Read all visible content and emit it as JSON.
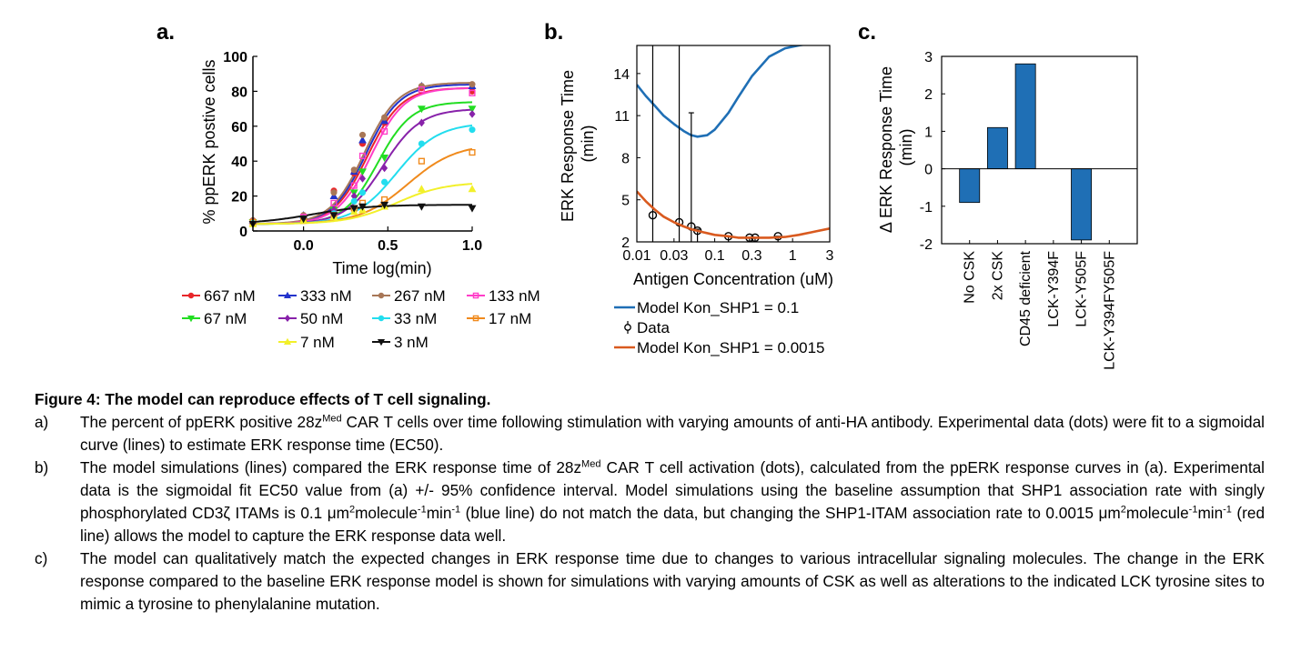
{
  "panels": {
    "a": {
      "label": "a.",
      "chart_data": {
        "type": "scatter",
        "xlabel": "Time log(min)",
        "ylabel": "% ppERK postive cells",
        "xlim": [
          -0.3,
          1.0
        ],
        "ylim": [
          0,
          100
        ],
        "xticks": [
          "0.0",
          "0.5",
          "1.0"
        ],
        "xtick_values": [
          0,
          0.5,
          1.0
        ],
        "yticks": [
          "0",
          "20",
          "40",
          "60",
          "80",
          "100"
        ],
        "ytick_values": [
          0,
          20,
          40,
          60,
          80,
          100
        ],
        "x": [
          -0.3,
          0.0,
          0.18,
          0.3,
          0.35,
          0.48,
          0.7,
          1.0
        ],
        "series": [
          {
            "name": "667 nM",
            "color": "#e8262a",
            "marker": "circle",
            "values": [
              6,
              8,
              23,
              33,
              50,
              62,
              82,
              80
            ],
            "fit": {
              "bottom": 4,
              "top": 82,
              "ec50": 0.38,
              "slope": 10
            }
          },
          {
            "name": "333 nM",
            "color": "#2233cc",
            "marker": "triangle-up",
            "values": [
              6,
              9,
              20,
              34,
              52,
              63,
              83,
              83
            ],
            "fit": {
              "bottom": 4,
              "top": 84,
              "ec50": 0.37,
              "slope": 10
            }
          },
          {
            "name": "267 nM",
            "color": "#a87757",
            "marker": "circle",
            "values": [
              6,
              9,
              22,
              35,
              55,
              65,
              83,
              84
            ],
            "fit": {
              "bottom": 4,
              "top": 85,
              "ec50": 0.36,
              "slope": 10
            }
          },
          {
            "name": "133 nM",
            "color": "#ff3dc8",
            "marker": "square",
            "values": [
              5,
              8,
              16,
              26,
              43,
              57,
              81,
              79
            ],
            "fit": {
              "bottom": 4,
              "top": 82,
              "ec50": 0.4,
              "slope": 10
            }
          },
          {
            "name": "67 nM",
            "color": "#22dd22",
            "marker": "triangle-down",
            "values": [
              5,
              7,
              12,
              22,
              34,
              42,
              70,
              70
            ],
            "fit": {
              "bottom": 4,
              "top": 74,
              "ec50": 0.44,
              "slope": 10
            }
          },
          {
            "name": "50 nM",
            "color": "#8822aa",
            "marker": "diamond",
            "values": [
              5,
              7,
              12,
              20,
              30,
              36,
              62,
              67
            ],
            "fit": {
              "bottom": 4,
              "top": 70,
              "ec50": 0.47,
              "slope": 9
            }
          },
          {
            "name": "33 nM",
            "color": "#22ddee",
            "marker": "circle",
            "values": [
              5,
              7,
              10,
              17,
              22,
              28,
              50,
              58
            ],
            "fit": {
              "bottom": 4,
              "top": 62,
              "ec50": 0.55,
              "slope": 8
            }
          },
          {
            "name": "17 nM",
            "color": "#f08a1c",
            "marker": "square",
            "values": [
              5,
              6,
              9,
              13,
              16,
              18,
              40,
              45
            ],
            "fit": {
              "bottom": 4,
              "top": 50,
              "ec50": 0.62,
              "slope": 7
            }
          },
          {
            "name": "7 nM",
            "color": "#f2f02a",
            "marker": "triangle-up",
            "values": [
              4,
              6,
              8,
              11,
              12,
              14,
              24,
              24
            ],
            "fit": {
              "bottom": 4,
              "top": 28,
              "ec50": 0.55,
              "slope": 7
            }
          },
          {
            "name": "3 nM",
            "color": "#111111",
            "marker": "triangle-down",
            "values": [
              4,
              7,
              9,
              13,
              14,
              15,
              14,
              13
            ],
            "fit": {
              "bottom": 4,
              "top": 15,
              "ec50": 0.05,
              "slope": 6
            }
          }
        ],
        "legend_placement": "bottom"
      }
    },
    "b": {
      "label": "b.",
      "chart_data": {
        "type": "line",
        "xlabel": "Antigen Concentration (uM)",
        "ylabel": "ERK Response Time (min)",
        "xscale": "log",
        "xlim": [
          0.01,
          3
        ],
        "ylim": [
          2,
          16
        ],
        "xticks": [
          "0.01",
          "0.03",
          "0.1",
          "0.3",
          "1",
          "3"
        ],
        "xtick_values": [
          0.01,
          0.03,
          0.1,
          0.3,
          1,
          3
        ],
        "yticks": [
          "2",
          "5",
          "8",
          "11",
          "14"
        ],
        "ytick_values": [
          2,
          5,
          8,
          11,
          14
        ],
        "series": [
          {
            "name": "Model Kon_SHP1 = 0.1",
            "color": "#1f6fb5",
            "x": [
              0.01,
              0.013,
              0.017,
              0.022,
              0.03,
              0.04,
              0.05,
              0.06,
              0.08,
              0.1,
              0.15,
              0.2,
              0.3,
              0.5,
              0.8,
              1.2,
              2,
              3
            ],
            "y": [
              13.2,
              12.4,
              11.7,
              11.0,
              10.4,
              9.9,
              9.6,
              9.5,
              9.6,
              10.0,
              11.2,
              12.3,
              13.8,
              15.2,
              15.8,
              16.0,
              16.2,
              16.3
            ]
          },
          {
            "name": "Data",
            "color": "#000000",
            "errorbars": true,
            "x": [
              0.016,
              0.035,
              0.05,
              0.06,
              0.15,
              0.28,
              0.33,
              0.65
            ],
            "y": [
              3.9,
              3.4,
              3.1,
              2.8,
              2.4,
              2.3,
              2.3,
              2.4
            ],
            "err_low": [
              1.9,
              1.4,
              1.1,
              0.8,
              0.2,
              0.1,
              0.1,
              0.2
            ],
            "err_high": [
              16.3,
              16.3,
              11.2,
              2.9,
              2.4,
              2.3,
              2.3,
              2.4
            ]
          },
          {
            "name": "Model Kon_SHP1 = 0.0015",
            "color": "#d95a1f",
            "x": [
              0.01,
              0.013,
              0.017,
              0.022,
              0.03,
              0.04,
              0.05,
              0.07,
              0.1,
              0.15,
              0.2,
              0.3,
              0.5,
              0.8,
              1.2,
              2,
              3
            ],
            "y": [
              5.6,
              4.9,
              4.3,
              3.8,
              3.4,
              3.1,
              2.9,
              2.7,
              2.5,
              2.4,
              2.3,
              2.3,
              2.3,
              2.35,
              2.5,
              2.75,
              2.95
            ]
          }
        ],
        "legend_placement": "bottom"
      }
    },
    "c": {
      "label": "c.",
      "chart_data": {
        "type": "bar",
        "ylabel": "Δ ERK Response Time (min)",
        "ylim": [
          -2,
          3
        ],
        "yticks": [
          "-2",
          "-1",
          "0",
          "1",
          "2",
          "3"
        ],
        "ytick_values": [
          -2,
          -1,
          0,
          1,
          2,
          3
        ],
        "categories": [
          "No CSK",
          "2x CSK",
          "CD45 deficient",
          "LCK-Y394F",
          "LCK-Y505F",
          "LCK-Y394FY505F"
        ],
        "values": [
          -0.9,
          1.1,
          2.8,
          0,
          -1.9,
          0
        ],
        "color": "#1f6fb5"
      }
    }
  },
  "caption": {
    "title": "Figure 4: The model can reproduce effects of T cell signaling.",
    "items": [
      {
        "tag": "a)",
        "parts": [
          {
            "t": "The percent of ppERK positive 28z"
          },
          {
            "sup": "Med"
          },
          {
            "t": " CAR T cells over time following stimulation with varying amounts of anti-HA antibody. Experimental data (dots) were fit to a sigmoidal curve (lines) to estimate ERK response time (EC50)."
          }
        ]
      },
      {
        "tag": "b)",
        "parts": [
          {
            "t": "The model simulations (lines) compared the ERK response time of 28z"
          },
          {
            "sup": "Med"
          },
          {
            "t": " CAR T cell activation (dots), calculated from the ppERK response curves in (a). Experimental data is the sigmoidal fit EC50 value from (a) +/- 95% confidence interval. Model simulations using the baseline assumption that SHP1 association rate with singly phosphorylated CD3ζ ITAMs is 0.1 μm"
          },
          {
            "sup": "2"
          },
          {
            "t": "molecule"
          },
          {
            "sup": "-1"
          },
          {
            "t": "min"
          },
          {
            "sup": "-1"
          },
          {
            "t": " (blue line) do not match the data, but changing the SHP1-ITAM association rate to 0.0015 μm"
          },
          {
            "sup": "2"
          },
          {
            "t": "molecule"
          },
          {
            "sup": "-1"
          },
          {
            "t": "min"
          },
          {
            "sup": "-1"
          },
          {
            "t": " (red line) allows the model to capture the ERK response data well."
          }
        ]
      },
      {
        "tag": "c)",
        "parts": [
          {
            "t": "The model can qualitatively match the expected changes in ERK response time due to changes to various intracellular signaling molecules. The change in the ERK response compared to the baseline ERK response model is shown for simulations with varying amounts of CSK as well as alterations to the indicated LCK tyrosine sites to mimic a tyrosine to phenylalanine mutation."
          }
        ]
      }
    ]
  }
}
